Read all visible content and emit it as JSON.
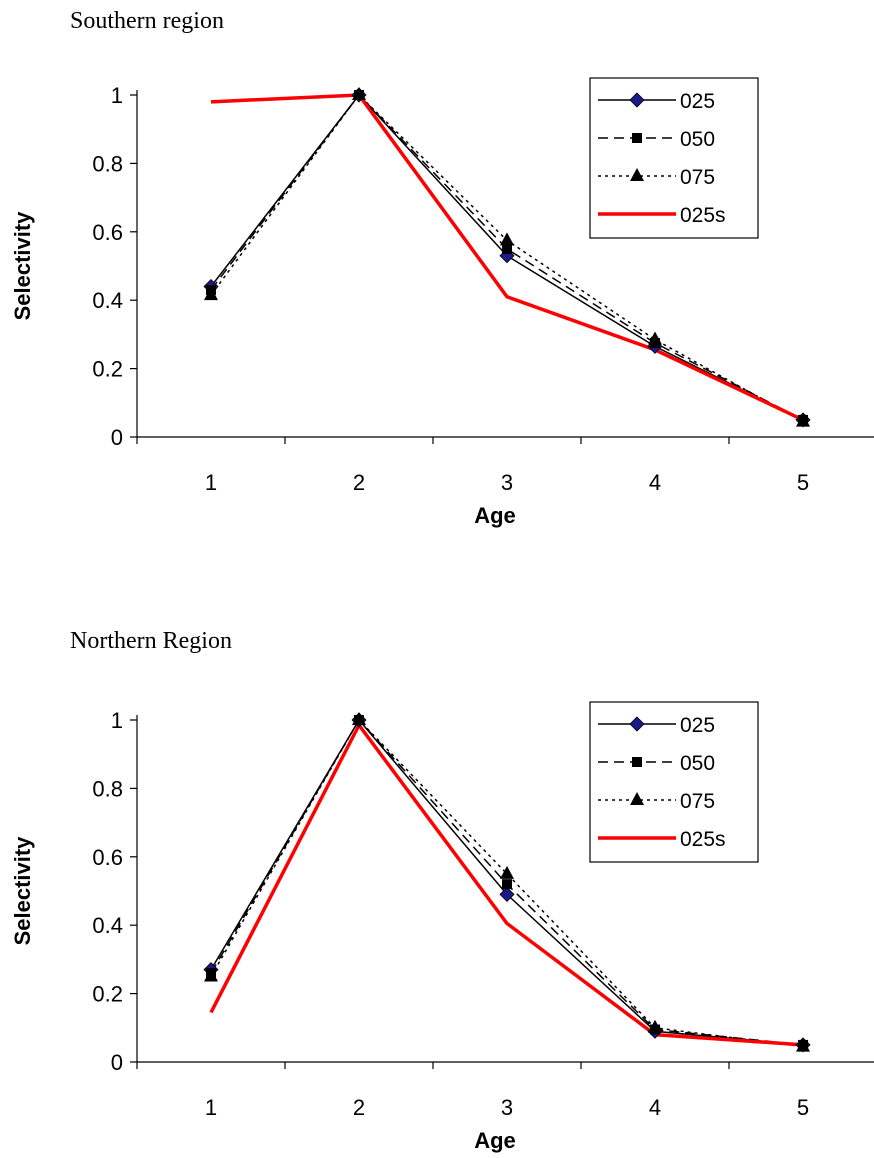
{
  "chart_data": [
    {
      "type": "line",
      "title": "Southern region",
      "xlabel": "Age",
      "ylabel": "Selectivity",
      "categories": [
        1,
        2,
        3,
        4,
        5
      ],
      "ylim": [
        0,
        1
      ],
      "yticks": [
        0,
        0.2,
        0.4,
        0.6,
        0.8,
        1
      ],
      "yticklabels": [
        "0",
        "0.2",
        "0.4",
        "0.6",
        "0.8",
        "1"
      ],
      "xticklabels": [
        "1",
        "2",
        "3",
        "4",
        "5"
      ],
      "grid": false,
      "legend_position": "top-right",
      "series": [
        {
          "name": "025",
          "values": [
            0.44,
            1.0,
            0.53,
            0.265,
            0.05
          ],
          "color": "#000000",
          "dash": "solid",
          "marker": "diamond",
          "marker_color": "#1a1a8c"
        },
        {
          "name": "050",
          "values": [
            0.43,
            1.0,
            0.55,
            0.275,
            0.05
          ],
          "color": "#000000",
          "dash": "dashed",
          "marker": "square",
          "marker_color": "#000000"
        },
        {
          "name": "075",
          "values": [
            0.415,
            1.0,
            0.575,
            0.285,
            0.045
          ],
          "color": "#000000",
          "dash": "dotted",
          "marker": "triangle",
          "marker_color": "#000000"
        },
        {
          "name": "025s",
          "values": [
            0.98,
            1.0,
            0.41,
            0.255,
            0.05
          ],
          "color": "#ff0000",
          "dash": "solid",
          "marker": "none",
          "marker_color": "#ff0000"
        }
      ]
    },
    {
      "type": "line",
      "title": "Northern Region",
      "xlabel": "Age",
      "ylabel": "Selectivity",
      "categories": [
        1,
        2,
        3,
        4,
        5
      ],
      "ylim": [
        0,
        1
      ],
      "yticks": [
        0,
        0.2,
        0.4,
        0.6,
        0.8,
        1
      ],
      "yticklabels": [
        "0",
        "0.2",
        "0.4",
        "0.6",
        "0.8",
        "1"
      ],
      "xticklabels": [
        "1",
        "2",
        "3",
        "4",
        "5"
      ],
      "grid": false,
      "legend_position": "top-right",
      "series": [
        {
          "name": "025",
          "values": [
            0.27,
            1.0,
            0.49,
            0.09,
            0.05
          ],
          "color": "#000000",
          "dash": "solid",
          "marker": "diamond",
          "marker_color": "#1a1a8c"
        },
        {
          "name": "050",
          "values": [
            0.26,
            1.0,
            0.52,
            0.095,
            0.05
          ],
          "color": "#000000",
          "dash": "dashed",
          "marker": "square",
          "marker_color": "#000000"
        },
        {
          "name": "075",
          "values": [
            0.25,
            1.0,
            0.55,
            0.1,
            0.045
          ],
          "color": "#000000",
          "dash": "dotted",
          "marker": "triangle",
          "marker_color": "#000000"
        },
        {
          "name": "025s",
          "values": [
            0.145,
            0.985,
            0.405,
            0.08,
            0.05
          ],
          "color": "#ff0000",
          "dash": "solid",
          "marker": "none",
          "marker_color": "#ff0000"
        }
      ]
    }
  ]
}
